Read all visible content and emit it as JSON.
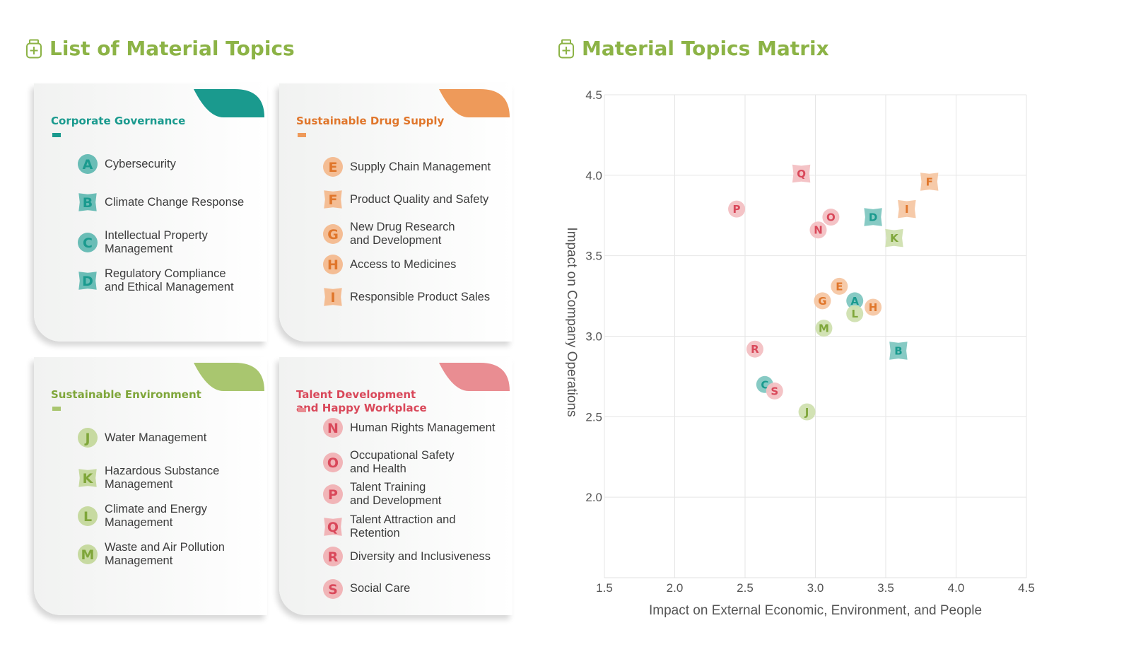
{
  "list_title": "List of Material Topics",
  "matrix_title": "Material Topics Matrix",
  "colors": {
    "title_green": "#8cb346",
    "governance": "#1a9a8e",
    "supply": "#ee9a5a",
    "environment": "#a9c66f",
    "talent": "#e98d92"
  },
  "groups": [
    {
      "title": "Corporate Governance",
      "color": "#1a9a8e",
      "text_color": "#1a9a8e",
      "topics": [
        {
          "letter": "A",
          "label": "Cybersecurity",
          "shape": "circle"
        },
        {
          "letter": "B",
          "label": "Climate Change Response",
          "shape": "star"
        },
        {
          "letter": "C",
          "label": "Intellectual Property\nManagement",
          "shape": "circle"
        },
        {
          "letter": "D",
          "label": "Regulatory Compliance\nand Ethical Management",
          "shape": "star"
        }
      ]
    },
    {
      "title": "Sustainable Drug Supply",
      "color": "#ee9a5a",
      "text_color": "#e0762b",
      "topics": [
        {
          "letter": "E",
          "label": "Supply Chain Management",
          "shape": "circle"
        },
        {
          "letter": "F",
          "label": "Product Quality and Safety",
          "shape": "star"
        },
        {
          "letter": "G",
          "label": "New Drug Research\nand Development",
          "shape": "circle"
        },
        {
          "letter": "H",
          "label": "Access to Medicines",
          "shape": "circle"
        },
        {
          "letter": "I",
          "label": "Responsible Product Sales",
          "shape": "star"
        }
      ]
    },
    {
      "title": "Sustainable Environment",
      "color": "#a9c66f",
      "text_color": "#7fa63a",
      "topics": [
        {
          "letter": "J",
          "label": "Water Management",
          "shape": "circle"
        },
        {
          "letter": "K",
          "label": "Hazardous Substance\nManagement",
          "shape": "star"
        },
        {
          "letter": "L",
          "label": "Climate and Energy\nManagement",
          "shape": "circle"
        },
        {
          "letter": "M",
          "label": "Waste and Air Pollution\nManagement",
          "shape": "circle"
        }
      ]
    },
    {
      "title": "Talent Development\nand Happy Workplace",
      "color": "#e98d92",
      "text_color": "#d9485a",
      "topics": [
        {
          "letter": "N",
          "label": "Human Rights Management",
          "shape": "circle"
        },
        {
          "letter": "O",
          "label": "Occupational Safety\nand Health",
          "shape": "circle"
        },
        {
          "letter": "P",
          "label": "Talent Training\nand Development",
          "shape": "circle"
        },
        {
          "letter": "Q",
          "label": "Talent Attraction and\nRetention",
          "shape": "star"
        },
        {
          "letter": "R",
          "label": "Diversity and Inclusiveness",
          "shape": "circle"
        },
        {
          "letter": "S",
          "label": "Social Care",
          "shape": "circle"
        }
      ]
    }
  ],
  "chart_data": {
    "type": "scatter",
    "title": "",
    "xlabel": "Impact on External Economic, Environment, and People",
    "ylabel": "Impact on Company Operations",
    "xlim": [
      1.5,
      4.5
    ],
    "ylim": [
      1.5,
      4.5
    ],
    "x_ticks": [
      "1.5",
      "2.0",
      "2.5",
      "3.0",
      "3.5",
      "4.0",
      "4.5"
    ],
    "y_ticks": [
      "2.0",
      "2.5",
      "3.0",
      "3.5",
      "4.0",
      "4.5"
    ],
    "grid": true,
    "points": [
      {
        "label": "A",
        "x": 3.28,
        "y": 3.22,
        "group": 0,
        "shape": "circle"
      },
      {
        "label": "B",
        "x": 3.59,
        "y": 2.91,
        "group": 0,
        "shape": "star"
      },
      {
        "label": "C",
        "x": 2.64,
        "y": 2.7,
        "group": 0,
        "shape": "circle"
      },
      {
        "label": "D",
        "x": 3.41,
        "y": 3.74,
        "group": 0,
        "shape": "star"
      },
      {
        "label": "E",
        "x": 3.17,
        "y": 3.31,
        "group": 1,
        "shape": "circle"
      },
      {
        "label": "F",
        "x": 3.81,
        "y": 3.96,
        "group": 1,
        "shape": "star"
      },
      {
        "label": "G",
        "x": 3.05,
        "y": 3.22,
        "group": 1,
        "shape": "circle"
      },
      {
        "label": "H",
        "x": 3.41,
        "y": 3.18,
        "group": 1,
        "shape": "circle"
      },
      {
        "label": "I",
        "x": 3.65,
        "y": 3.79,
        "group": 1,
        "shape": "star"
      },
      {
        "label": "J",
        "x": 2.94,
        "y": 2.53,
        "group": 2,
        "shape": "circle"
      },
      {
        "label": "K",
        "x": 3.56,
        "y": 3.61,
        "group": 2,
        "shape": "star"
      },
      {
        "label": "L",
        "x": 3.28,
        "y": 3.14,
        "group": 2,
        "shape": "circle"
      },
      {
        "label": "M",
        "x": 3.06,
        "y": 3.05,
        "group": 2,
        "shape": "circle"
      },
      {
        "label": "N",
        "x": 3.02,
        "y": 3.66,
        "group": 3,
        "shape": "circle"
      },
      {
        "label": "O",
        "x": 3.11,
        "y": 3.74,
        "group": 3,
        "shape": "circle"
      },
      {
        "label": "P",
        "x": 2.44,
        "y": 3.79,
        "group": 3,
        "shape": "circle"
      },
      {
        "label": "Q",
        "x": 2.9,
        "y": 4.01,
        "group": 3,
        "shape": "star"
      },
      {
        "label": "R",
        "x": 2.57,
        "y": 2.92,
        "group": 3,
        "shape": "circle"
      },
      {
        "label": "S",
        "x": 2.71,
        "y": 2.66,
        "group": 3,
        "shape": "circle"
      }
    ]
  }
}
